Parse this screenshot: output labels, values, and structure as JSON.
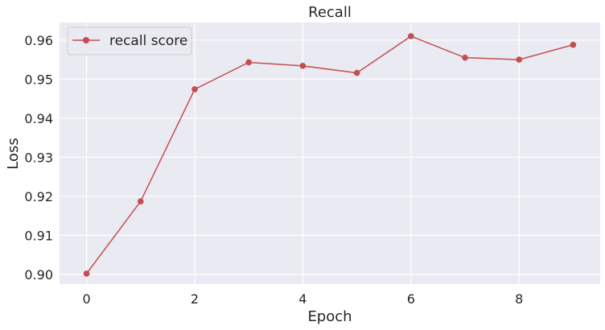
{
  "chart_data": {
    "type": "line",
    "title": "Recall",
    "xlabel": "Epoch",
    "ylabel": "Loss",
    "x": [
      0,
      1,
      2,
      3,
      4,
      5,
      6,
      7,
      8,
      9
    ],
    "series": [
      {
        "name": "recall score",
        "color": "#c44e52",
        "marker": "circle",
        "values": [
          0.9002,
          0.9187,
          0.9474,
          0.9543,
          0.9534,
          0.9516,
          0.961,
          0.9555,
          0.955,
          0.9588
        ]
      }
    ],
    "xlim": [
      -0.5,
      9.5
    ],
    "ylim": [
      0.8975,
      0.9645
    ],
    "xticks": [
      0,
      2,
      4,
      6,
      8
    ],
    "xtick_labels": [
      "0",
      "2",
      "4",
      "6",
      "8"
    ],
    "yticks": [
      0.9,
      0.91,
      0.92,
      0.93,
      0.94,
      0.95,
      0.96
    ],
    "ytick_labels": [
      "0.90",
      "0.91",
      "0.92",
      "0.93",
      "0.94",
      "0.95",
      "0.96"
    ],
    "grid": true,
    "legend_position": "top-left",
    "style": {
      "plot_background": "#eaeaf2",
      "grid_color": "#ffffff",
      "text_color": "#262626"
    }
  }
}
